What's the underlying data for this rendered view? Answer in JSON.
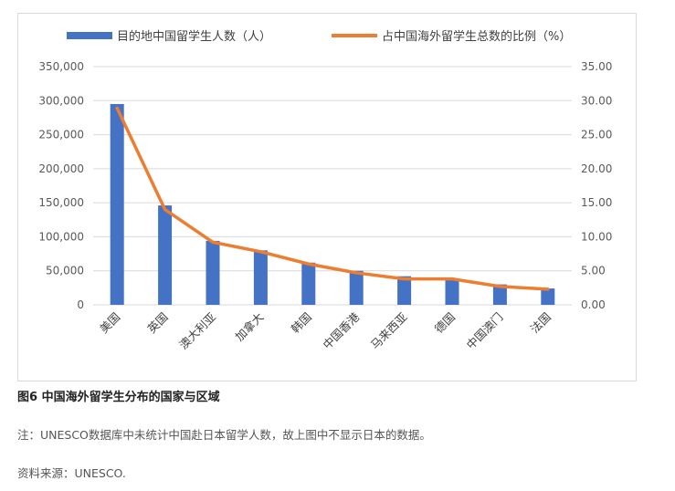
{
  "chart_data": {
    "type": "bar",
    "categories": [
      "美国",
      "英国",
      "澳大利亚",
      "加拿大",
      "韩国",
      "中国香港",
      "马来西亚",
      "德国",
      "中国澳门",
      "法国"
    ],
    "series": [
      {
        "name": "目的地中国留学生人数（人）",
        "type": "bar",
        "axis": "left",
        "color": "#4472c4",
        "values": [
          295000,
          146000,
          94000,
          80000,
          62000,
          50000,
          42000,
          38000,
          30000,
          24000
        ]
      },
      {
        "name": "占中国海外留学生总数的比例（%）",
        "type": "line",
        "axis": "right",
        "color": "#ed7d31",
        "values": [
          28.9,
          14.0,
          9.2,
          7.8,
          6.0,
          4.7,
          3.8,
          3.8,
          2.7,
          2.3
        ]
      }
    ],
    "y_left": {
      "min": 0,
      "max": 350000,
      "ticks": [
        "0",
        "50,000",
        "100,000",
        "150,000",
        "200,000",
        "250,000",
        "300,000",
        "350,000"
      ]
    },
    "y_right": {
      "min": 0,
      "max": 35,
      "ticks": [
        "0.00",
        "5.00",
        "10.00",
        "15.00",
        "20.00",
        "25.00",
        "30.00",
        "35.00"
      ]
    },
    "grid": true,
    "legend": "top"
  },
  "caption": "图6 中国海外留学生分布的国家与区域",
  "note": "注：UNESCO数据库中未统计中国赴日本留学人数，故上图中不显示日本的数据。",
  "source": "资料来源：UNESCO."
}
